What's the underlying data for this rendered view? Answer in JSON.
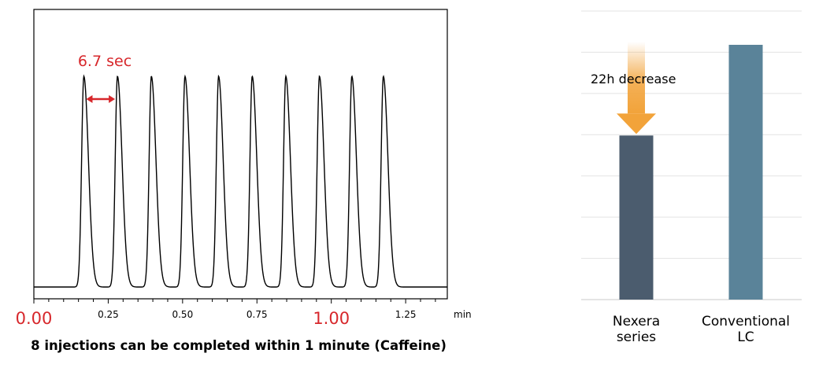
{
  "chart_data": [
    {
      "type": "line",
      "title": "",
      "caption": "8 injections can be completed within 1 minute (Caffeine)",
      "xlabel": "min",
      "ylabel": "",
      "xlim": [
        0.0,
        1.39
      ],
      "x_ticks": [
        {
          "value": 0.0,
          "label": "0.00",
          "highlight": true
        },
        {
          "value": 0.25,
          "label": "0.25",
          "highlight": false
        },
        {
          "value": 0.5,
          "label": "0.50",
          "highlight": false
        },
        {
          "value": 0.75,
          "label": "0.75",
          "highlight": false
        },
        {
          "value": 1.0,
          "label": "1.00",
          "highlight": true
        },
        {
          "value": 1.25,
          "label": "1.25",
          "highlight": false
        }
      ],
      "x_minor_step": 0.05,
      "peak_times": [
        0.168,
        0.281,
        0.395,
        0.508,
        0.621,
        0.734,
        0.847,
        0.96,
        1.069,
        1.175
      ],
      "annotation": {
        "label": "6.7 sec",
        "from": 0.168,
        "to": 0.281
      },
      "grid": false,
      "line_color": "#000000",
      "accent_color": "#d7272b"
    },
    {
      "type": "bar",
      "title": "",
      "categories": [
        "Nexera\nseries",
        "Conventional\nLC"
      ],
      "values": [
        39.8,
        61.8
      ],
      "ylim": [
        0,
        70
      ],
      "gridlines": [
        0,
        10,
        20,
        30,
        40,
        50,
        60,
        70
      ],
      "grid": true,
      "colors": [
        "#4b5c6e",
        "#5a8399"
      ],
      "annotation": {
        "label": "22h decrease",
        "arrow": "down",
        "color": "#f2a33a"
      }
    }
  ]
}
